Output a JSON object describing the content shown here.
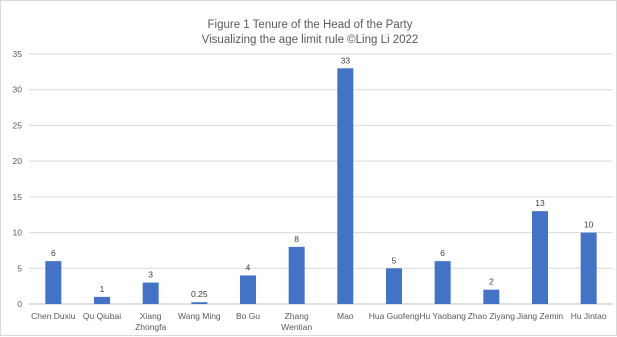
{
  "chart_data": {
    "type": "bar",
    "title": "Figure 1 Tenure of the Head of the Party",
    "subtitle": "Visualizing the age limit rule ©Ling Li 2022",
    "categories": [
      [
        "Chen Duxiu"
      ],
      [
        "Qu Qiubai"
      ],
      [
        "Xiang",
        "Zhongfa"
      ],
      [
        "Wang Ming"
      ],
      [
        "Bo Gu"
      ],
      [
        "Zhang",
        "Wentian"
      ],
      [
        "Mao"
      ],
      [
        "Hua Guofeng"
      ],
      [
        "Hu Yaobang"
      ],
      [
        "Zhao Ziyang"
      ],
      [
        "Jiang Zemin"
      ],
      [
        "Hu Jintao"
      ]
    ],
    "values": [
      6,
      1,
      3,
      0.25,
      4,
      8,
      33,
      5,
      6,
      2,
      13,
      10
    ],
    "data_labels": [
      "6",
      "1",
      "3",
      "0.25",
      "4",
      "8",
      "33",
      "5",
      "6",
      "2",
      "13",
      "10"
    ],
    "yticks": [
      0,
      5,
      10,
      15,
      20,
      25,
      30,
      35
    ],
    "ylim": [
      0,
      35
    ],
    "grid": true,
    "legend": "none",
    "bar_color": "#4472c4"
  }
}
